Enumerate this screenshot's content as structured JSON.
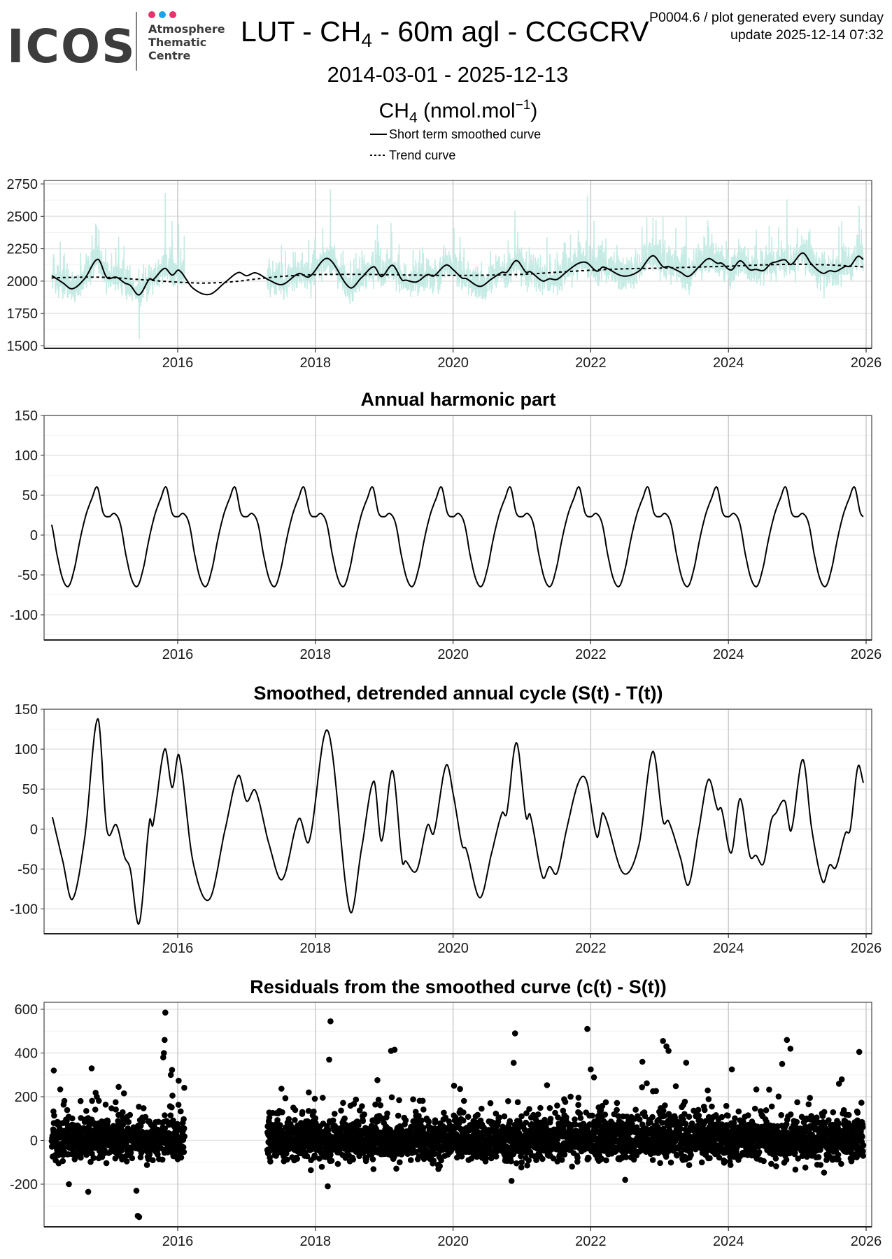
{
  "logo": {
    "wordmark": "ICOS",
    "line1": "Atmosphere",
    "line2": "Thematic",
    "line3": "Centre",
    "dot_colors": [
      "#e8336b",
      "#1aa3e8",
      "#e8336b"
    ]
  },
  "header": {
    "title_prefix": "LUT - CH",
    "title_sub": "4",
    "title_suffix": " - 60m agl - CCGCRV",
    "version_note": "P0004.6 / plot generated every sunday",
    "update_note": "update  2025-12-14 07:32",
    "date_range": "2014-03-01 - 2025-12-13",
    "unit_prefix": "CH",
    "unit_sub": "4",
    "unit_mid": " (nmol.mol",
    "unit_sup": "−1",
    "unit_end": ")"
  },
  "legend": {
    "smoothed": "Short term smoothed curve",
    "trend": "Trend curve"
  },
  "colors": {
    "raw": "#c5ebe4",
    "curve": "#000000",
    "grid_major": "#e6e6e6",
    "grid_year": "#c8c8c8"
  },
  "x_ticks": [
    "2016",
    "2018",
    "2020",
    "2022",
    "2024",
    "2026"
  ],
  "chart_data": [
    {
      "type": "line",
      "title": "",
      "ylabel": "CH4 (nmol.mol-1)",
      "xlim": [
        2014.06,
        2026.06
      ],
      "ylim": [
        1500,
        2750
      ],
      "y_ticks": [
        "2750",
        "2500",
        "2250",
        "2000",
        "1750",
        "1500"
      ],
      "data_gap": [
        2016.1,
        2017.3
      ],
      "trend": [
        [
          2014.17,
          2025
        ],
        [
          2014.6,
          2030
        ],
        [
          2015.0,
          2028
        ],
        [
          2015.5,
          2010
        ],
        [
          2016.0,
          1992
        ],
        [
          2016.4,
          1985
        ],
        [
          2016.8,
          1995
        ],
        [
          2017.2,
          2020
        ],
        [
          2017.6,
          2040
        ],
        [
          2018.0,
          2050
        ],
        [
          2018.5,
          2052
        ],
        [
          2019.0,
          2050
        ],
        [
          2019.5,
          2046
        ],
        [
          2020.0,
          2044
        ],
        [
          2020.5,
          2046
        ],
        [
          2021.0,
          2052
        ],
        [
          2021.5,
          2068
        ],
        [
          2022.0,
          2084
        ],
        [
          2022.5,
          2095
        ],
        [
          2023.0,
          2100
        ],
        [
          2023.5,
          2108
        ],
        [
          2024.0,
          2115
        ],
        [
          2024.5,
          2125
        ],
        [
          2025.0,
          2130
        ],
        [
          2025.5,
          2124
        ],
        [
          2025.96,
          2110
        ]
      ],
      "smoothed_note": "Short term smoothed curve = trend + detrended annual cycle",
      "raw_spikes": [
        [
          2015.44,
          1550
        ],
        [
          2015.82,
          2680
        ],
        [
          2018.22,
          2710
        ],
        [
          2019.1,
          2450
        ],
        [
          2020.9,
          2540
        ],
        [
          2021.95,
          2660
        ],
        [
          2023.05,
          2500
        ],
        [
          2024.85,
          2630
        ],
        [
          2025.9,
          2580
        ]
      ]
    },
    {
      "type": "line",
      "title": "Annual harmonic part",
      "ylim": [
        -130,
        150
      ],
      "y_ticks": [
        "150",
        "100",
        "50",
        "0",
        "-50",
        "-100"
      ],
      "x_range": [
        2014.17,
        2025.96
      ],
      "annual_cycle_monthly": [
        23,
        27,
        14,
        -26,
        -56,
        -64,
        -42,
        -5,
        25,
        45,
        60,
        28
      ]
    },
    {
      "type": "line",
      "title": "Smoothed, detrended annual cycle (S(t) - T(t))",
      "ylim": [
        -130,
        150
      ],
      "y_ticks": [
        "150",
        "100",
        "50",
        "0",
        "-50",
        "-100"
      ],
      "points": [
        [
          2014.18,
          15
        ],
        [
          2014.33,
          -40
        ],
        [
          2014.47,
          -88
        ],
        [
          2014.65,
          -10
        ],
        [
          2014.84,
          138
        ],
        [
          2014.97,
          0
        ],
        [
          2015.11,
          5
        ],
        [
          2015.23,
          -35
        ],
        [
          2015.31,
          -50
        ],
        [
          2015.44,
          -118
        ],
        [
          2015.59,
          10
        ],
        [
          2015.64,
          5
        ],
        [
          2015.81,
          100
        ],
        [
          2015.92,
          52
        ],
        [
          2016.02,
          92
        ],
        [
          2016.22,
          -40
        ],
        [
          2016.46,
          -88
        ],
        [
          2016.69,
          0
        ],
        [
          2016.88,
          67
        ],
        [
          2017.0,
          35
        ],
        [
          2017.13,
          48
        ],
        [
          2017.33,
          -20
        ],
        [
          2017.52,
          -63
        ],
        [
          2017.76,
          13
        ],
        [
          2017.91,
          -15
        ],
        [
          2018.18,
          123
        ],
        [
          2018.5,
          -102
        ],
        [
          2018.67,
          -25
        ],
        [
          2018.85,
          60
        ],
        [
          2018.96,
          -15
        ],
        [
          2019.12,
          73
        ],
        [
          2019.26,
          -40
        ],
        [
          2019.31,
          -40
        ],
        [
          2019.47,
          -52
        ],
        [
          2019.63,
          5
        ],
        [
          2019.72,
          -5
        ],
        [
          2019.9,
          80
        ],
        [
          2020.01,
          40
        ],
        [
          2020.13,
          -20
        ],
        [
          2020.19,
          -25
        ],
        [
          2020.39,
          -86
        ],
        [
          2020.56,
          -30
        ],
        [
          2020.71,
          20
        ],
        [
          2020.78,
          20
        ],
        [
          2020.92,
          108
        ],
        [
          2021.06,
          15
        ],
        [
          2021.12,
          18
        ],
        [
          2021.3,
          -60
        ],
        [
          2021.4,
          -47
        ],
        [
          2021.51,
          -55
        ],
        [
          2021.65,
          0
        ],
        [
          2021.82,
          58
        ],
        [
          2021.94,
          60
        ],
        [
          2022.09,
          -10
        ],
        [
          2022.18,
          20
        ],
        [
          2022.47,
          -55
        ],
        [
          2022.7,
          -20
        ],
        [
          2022.9,
          97
        ],
        [
          2023.05,
          10
        ],
        [
          2023.13,
          10
        ],
        [
          2023.3,
          -35
        ],
        [
          2023.42,
          -70
        ],
        [
          2023.57,
          0
        ],
        [
          2023.71,
          62
        ],
        [
          2023.84,
          25
        ],
        [
          2023.9,
          25
        ],
        [
          2024.04,
          -30
        ],
        [
          2024.17,
          38
        ],
        [
          2024.31,
          -33
        ],
        [
          2024.4,
          -33
        ],
        [
          2024.51,
          -43
        ],
        [
          2024.62,
          10
        ],
        [
          2024.69,
          20
        ],
        [
          2024.82,
          35
        ],
        [
          2024.91,
          -2
        ],
        [
          2025.08,
          87
        ],
        [
          2025.21,
          0
        ],
        [
          2025.37,
          -66
        ],
        [
          2025.47,
          -45
        ],
        [
          2025.56,
          -48
        ],
        [
          2025.7,
          -5
        ],
        [
          2025.77,
          0
        ],
        [
          2025.88,
          78
        ],
        [
          2025.96,
          58
        ]
      ]
    },
    {
      "type": "scatter",
      "title": "Residuals from the smoothed curve (c(t) - S(t))",
      "ylim": [
        -390,
        630
      ],
      "y_ticks": [
        "600",
        "400",
        "200",
        "0",
        "-200"
      ],
      "data_gap": [
        2016.1,
        2017.3
      ],
      "typical_spread_sd": 45,
      "outliers": [
        [
          2015.82,
          585
        ],
        [
          2015.81,
          460
        ],
        [
          2015.8,
          400
        ],
        [
          2015.79,
          380
        ],
        [
          2015.9,
          300
        ],
        [
          2014.2,
          320
        ],
        [
          2014.75,
          330
        ],
        [
          2018.22,
          545
        ],
        [
          2018.2,
          370
        ],
        [
          2019.1,
          410
        ],
        [
          2019.15,
          415
        ],
        [
          2020.9,
          490
        ],
        [
          2020.88,
          355
        ],
        [
          2021.95,
          510
        ],
        [
          2022.0,
          325
        ],
        [
          2022.75,
          360
        ],
        [
          2023.05,
          455
        ],
        [
          2023.1,
          430
        ],
        [
          2023.13,
          410
        ],
        [
          2024.05,
          325
        ],
        [
          2024.85,
          460
        ],
        [
          2024.9,
          420
        ],
        [
          2024.78,
          350
        ],
        [
          2025.9,
          405
        ],
        [
          2015.42,
          -345
        ],
        [
          2015.44,
          -350
        ],
        [
          2014.7,
          -235
        ],
        [
          2015.4,
          -230
        ],
        [
          2014.42,
          -200
        ],
        [
          2018.18,
          -210
        ],
        [
          2020.85,
          -185
        ],
        [
          2022.5,
          -180
        ]
      ]
    }
  ]
}
